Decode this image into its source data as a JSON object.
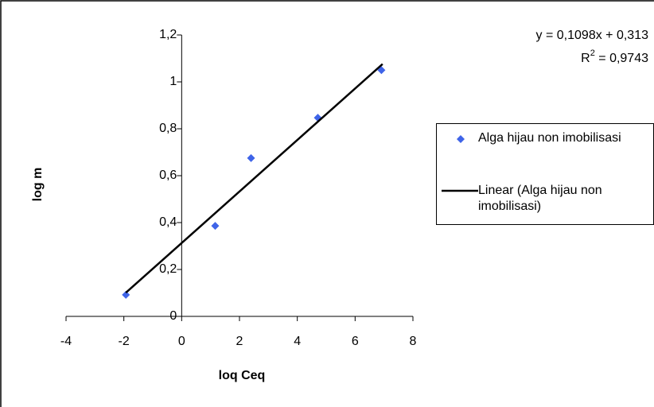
{
  "chart_data": {
    "type": "scatter",
    "x_label": "loq Ceq",
    "y_label": "log m",
    "equation": "y = 0,1098x + 0,313",
    "r_squared": {
      "base": "R",
      "sup": "2",
      "rest": " = 0,9743"
    },
    "xlim": [
      -4,
      8
    ],
    "xticks": [
      -4,
      -2,
      0,
      2,
      4,
      6,
      8
    ],
    "ylim": [
      0,
      1.2
    ],
    "yticks": [
      0,
      {
        "value": 0.2,
        "label": "0,2"
      },
      {
        "value": 0.4,
        "label": "0,4"
      },
      {
        "value": 0.6,
        "label": "0,6"
      },
      {
        "value": 0.8,
        "label": "0,8"
      },
      1,
      {
        "value": 1.2,
        "label": "1,2"
      }
    ],
    "series": [
      {
        "name": "Alga hijau non imobilisasi",
        "color": "#3f64e8",
        "style": "marker",
        "x": [
          -1.93,
          1.16,
          2.4,
          4.71,
          6.91
        ],
        "values": [
          0.092,
          0.386,
          0.675,
          0.847,
          1.05
        ]
      },
      {
        "name": "Linear (Alga hijau non imobilisasi)",
        "color": "#000000",
        "style": "line",
        "x": [
          -1.93,
          6.95
        ],
        "values": [
          0.101,
          1.076
        ]
      }
    ]
  }
}
